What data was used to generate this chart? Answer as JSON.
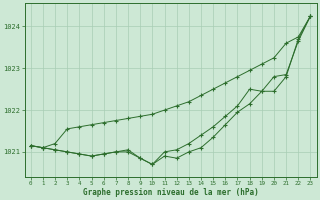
{
  "title": "Graphe pression niveau de la mer (hPa)",
  "background_color": "#cde8d5",
  "grid_color": "#a8cdb5",
  "line_color": "#2d6e2d",
  "marker_color": "#2d6e2d",
  "xlim": [
    -0.5,
    23.5
  ],
  "ylim": [
    1020.4,
    1024.55
  ],
  "yticks": [
    1021,
    1022,
    1023,
    1024
  ],
  "xticks": [
    0,
    1,
    2,
    3,
    4,
    5,
    6,
    7,
    8,
    9,
    10,
    11,
    12,
    13,
    14,
    15,
    16,
    17,
    18,
    19,
    20,
    21,
    22,
    23
  ],
  "series1_x": [
    0,
    1,
    2,
    3,
    4,
    5,
    6,
    7,
    8,
    9,
    10,
    11,
    12,
    13,
    14,
    15,
    16,
    17,
    18,
    19,
    20,
    21,
    22,
    23
  ],
  "series1_y": [
    1021.15,
    1021.1,
    1021.2,
    1021.55,
    1021.6,
    1021.65,
    1021.7,
    1021.75,
    1021.8,
    1021.85,
    1021.9,
    1022.0,
    1022.1,
    1022.2,
    1022.35,
    1022.5,
    1022.65,
    1022.8,
    1022.95,
    1023.1,
    1023.25,
    1023.6,
    1023.75,
    1024.25
  ],
  "series2_x": [
    0,
    1,
    2,
    3,
    4,
    5,
    6,
    7,
    8,
    9,
    10,
    11,
    12,
    13,
    14,
    15,
    16,
    17,
    18,
    19,
    20,
    21,
    22,
    23
  ],
  "series2_y": [
    1021.15,
    1021.1,
    1021.05,
    1021.0,
    1020.95,
    1020.9,
    1020.95,
    1021.0,
    1021.0,
    1020.85,
    1020.7,
    1021.0,
    1021.05,
    1021.2,
    1021.4,
    1021.6,
    1021.85,
    1022.1,
    1022.5,
    1022.45,
    1022.8,
    1022.85,
    1023.65,
    1024.25
  ],
  "series3_x": [
    0,
    1,
    2,
    3,
    4,
    5,
    6,
    7,
    8,
    9,
    10,
    11,
    12,
    13,
    14,
    15,
    16,
    17,
    18,
    19,
    20,
    21,
    22,
    23
  ],
  "series3_y": [
    1021.15,
    1021.1,
    1021.05,
    1021.0,
    1020.95,
    1020.9,
    1020.95,
    1021.0,
    1021.05,
    1020.85,
    1020.7,
    1020.9,
    1020.85,
    1021.0,
    1021.1,
    1021.35,
    1021.65,
    1021.95,
    1022.15,
    1022.45,
    1022.45,
    1022.8,
    1023.7,
    1024.25
  ]
}
